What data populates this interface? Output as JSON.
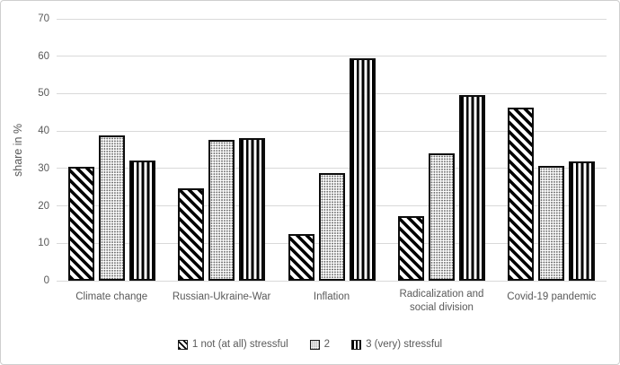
{
  "chart_data": {
    "type": "bar",
    "title": "",
    "ylabel": "share in %",
    "xlabel": "",
    "ylim": [
      0,
      70
    ],
    "yticks": [
      0,
      10,
      20,
      30,
      40,
      50,
      60,
      70
    ],
    "grid": true,
    "legend_position": "bottom",
    "categories": [
      "Climate change",
      "Russian-Ukraine-War",
      "Inflation",
      "Radicalization and\nsocial division",
      "Covid-19 pandemic"
    ],
    "series": [
      {
        "name": "1 not (at all) stressful",
        "pattern": "diagonal-stripes",
        "values": [
          30.5,
          24.8,
          12.4,
          17.2,
          46.3
        ]
      },
      {
        "name": "2",
        "pattern": "dots",
        "values": [
          38.8,
          37.7,
          28.8,
          34.0,
          30.7
        ]
      },
      {
        "name": "3 (very) stressful",
        "pattern": "vertical-stripes",
        "values": [
          32.1,
          38.2,
          59.5,
          49.6,
          32.0
        ]
      }
    ],
    "colors": {
      "bar_fill": "#ffffff",
      "pattern_foreground": "#000000",
      "axis_text": "#595959",
      "gridline": "#d9d9d9",
      "frame_border": "#cfcfcf"
    }
  }
}
